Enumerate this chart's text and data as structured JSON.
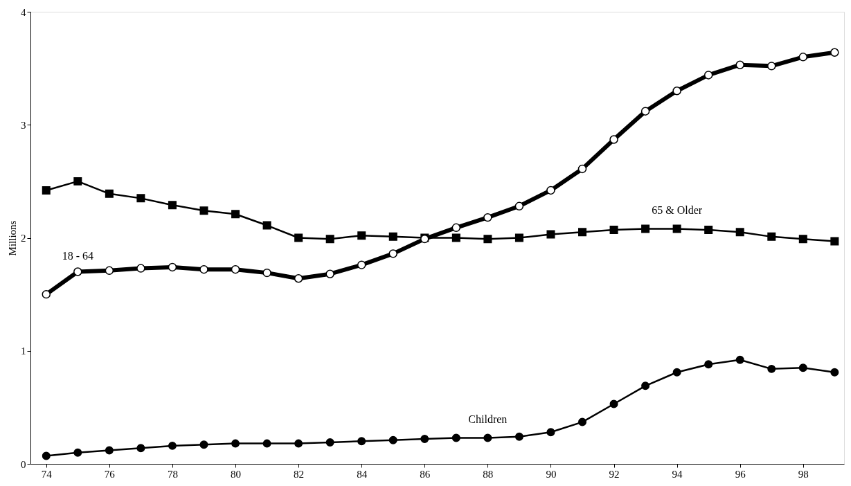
{
  "chart_data": {
    "type": "line",
    "ylabel": "Millions",
    "x": [
      74,
      75,
      76,
      77,
      78,
      79,
      80,
      81,
      82,
      83,
      84,
      85,
      86,
      87,
      88,
      89,
      90,
      91,
      92,
      93,
      94,
      95,
      96,
      97,
      98,
      99
    ],
    "series": [
      {
        "name": "18 - 64",
        "color": "#000000",
        "marker": "circle",
        "values": [
          1.5,
          1.7,
          1.71,
          1.73,
          1.74,
          1.72,
          1.72,
          1.69,
          1.64,
          1.68,
          1.76,
          1.86,
          1.99,
          2.09,
          2.18,
          2.28,
          2.42,
          2.61,
          2.87,
          3.12,
          3.3,
          3.44,
          3.53,
          3.52,
          3.6,
          3.64
        ]
      },
      {
        "name": "65 & Older",
        "color": "#000000",
        "marker": "square",
        "values": [
          2.42,
          2.5,
          2.39,
          2.35,
          2.29,
          2.24,
          2.21,
          2.11,
          2.0,
          1.99,
          2.02,
          2.01,
          2.0,
          2.0,
          1.99,
          2.0,
          2.03,
          2.05,
          2.07,
          2.08,
          2.08,
          2.07,
          2.05,
          2.01,
          1.99,
          1.97
        ]
      },
      {
        "name": "Children",
        "color": "#000000",
        "marker": "circle",
        "values": [
          0.07,
          0.1,
          0.12,
          0.14,
          0.16,
          0.17,
          0.18,
          0.18,
          0.18,
          0.19,
          0.2,
          0.21,
          0.22,
          0.23,
          0.23,
          0.24,
          0.28,
          0.37,
          0.53,
          0.69,
          0.81,
          0.88,
          0.92,
          0.84,
          0.85,
          0.81
        ]
      }
    ],
    "xlim": [
      73.5,
      99.3
    ],
    "xticks": [
      74,
      76,
      78,
      80,
      82,
      84,
      86,
      88,
      90,
      92,
      94,
      96,
      98
    ],
    "ylim": [
      0,
      4
    ],
    "yticks": [
      0,
      1,
      2,
      3,
      4
    ],
    "grid": false
  }
}
